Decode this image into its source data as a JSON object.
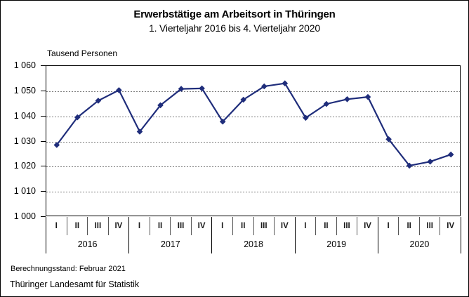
{
  "chart_data": {
    "type": "line",
    "title": "Erwerbstätige am Arbeitsort in Thüringen",
    "subtitle": "1. Vierteljahr 2016 bis 4. Vierteljahr 2020",
    "unit_label": "Tausend Personen",
    "years": [
      "2016",
      "2017",
      "2018",
      "2019",
      "2020"
    ],
    "quarter_labels": [
      "I",
      "II",
      "III",
      "IV"
    ],
    "categories": [
      "I/2016",
      "II/2016",
      "III/2016",
      "IV/2016",
      "I/2017",
      "II/2017",
      "III/2017",
      "IV/2017",
      "I/2018",
      "II/2018",
      "III/2018",
      "IV/2018",
      "I/2019",
      "II/2019",
      "III/2019",
      "IV/2019",
      "I/2020",
      "II/2020",
      "III/2020",
      "IV/2020"
    ],
    "series": [
      {
        "name": "Erwerbstätige am Arbeitsort",
        "values": [
          1028.6,
          1039.6,
          1046.2,
          1050.4,
          1033.9,
          1044.4,
          1050.9,
          1051.1,
          1037.9,
          1046.6,
          1051.9,
          1053.1,
          1039.4,
          1044.9,
          1046.8,
          1047.7,
          1030.9,
          1020.4,
          1022.0,
          1024.8
        ]
      }
    ],
    "ylim": [
      1000,
      1060
    ],
    "ytick_values": [
      1000,
      1010,
      1020,
      1030,
      1040,
      1050,
      1060
    ],
    "ytick_labels": [
      "1 000",
      "1 010",
      "1 020",
      "1 030",
      "1 040",
      "1 050",
      "1 060"
    ],
    "grid": "horizontal-dashed",
    "legend_position": "none",
    "line_color": "#1f2d7b",
    "marker": "diamond",
    "gridline_color": "#7c7c7c"
  },
  "footer": {
    "berechnungsstand": "Berechnungsstand: Februar 2021",
    "source": "Thüringer Landesamt für Statistik"
  }
}
